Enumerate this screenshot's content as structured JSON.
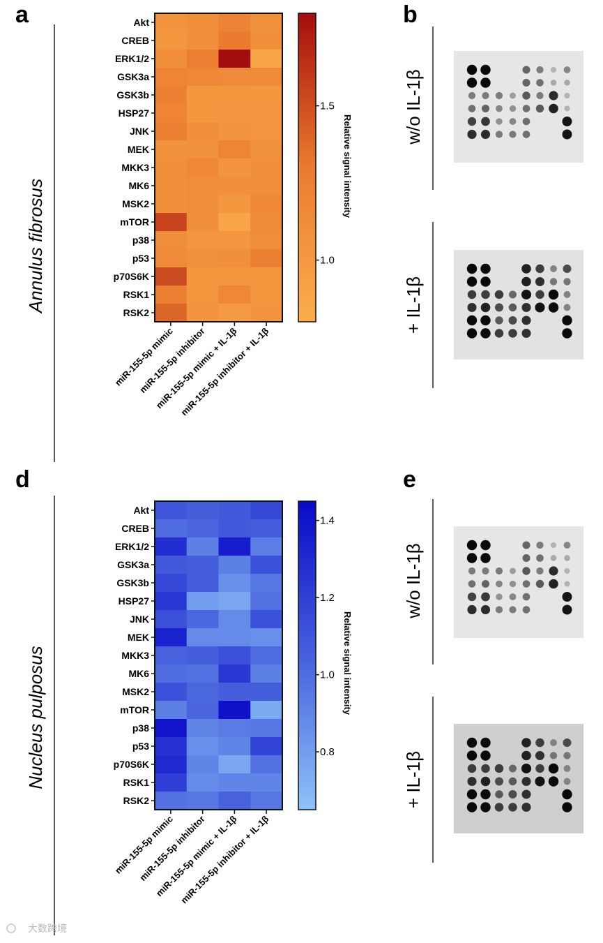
{
  "figure": {
    "panels": {
      "a": "a",
      "b": "b",
      "d": "d",
      "e": "e"
    },
    "watermark": "大数跨境"
  },
  "chart_data": [
    {
      "type": "heatmap",
      "panel": "a",
      "side_title": "Annulus fibrosus",
      "colorbar_title": "Relative signal intensity",
      "colormap": [
        "#fbae4d",
        "#ea7b2f",
        "#a40d0d"
      ],
      "vrange": [
        0.8,
        1.8
      ],
      "colorbar_ticks": [
        "1.0",
        "1.5"
      ],
      "colorbar_tick_values": [
        1.0,
        1.5
      ],
      "rows": [
        "Akt",
        "CREB",
        "ERK1/2",
        "GSK3a",
        "GSK3b",
        "HSP27",
        "JNK",
        "MEK",
        "MKK3",
        "MK6",
        "MSK2",
        "mTOR",
        "p38",
        "p53",
        "p70S6K",
        "RSK1",
        "RSK2"
      ],
      "columns": [
        "miR-155-5p mimic",
        "miR-155-5p inhibitor",
        "miR-155-5p mimic + IL-1β",
        "miR-155-5p inhibitor + IL-1β"
      ],
      "values": [
        [
          1.05,
          1.1,
          1.22,
          1.08
        ],
        [
          1.02,
          1.1,
          1.3,
          1.1
        ],
        [
          1.1,
          1.25,
          1.8,
          0.88
        ],
        [
          1.2,
          1.18,
          1.15,
          1.15
        ],
        [
          1.25,
          1.02,
          1.03,
          1.02
        ],
        [
          1.2,
          1.03,
          1.04,
          1.04
        ],
        [
          1.25,
          1.1,
          1.05,
          1.04
        ],
        [
          1.07,
          1.08,
          1.2,
          1.08
        ],
        [
          1.1,
          1.18,
          1.05,
          1.1
        ],
        [
          1.1,
          1.12,
          1.1,
          1.1
        ],
        [
          1.1,
          1.12,
          1.02,
          1.18
        ],
        [
          1.55,
          1.1,
          0.9,
          1.15
        ],
        [
          1.12,
          1.04,
          1.04,
          1.12
        ],
        [
          1.15,
          1.08,
          1.1,
          1.25
        ],
        [
          1.52,
          1.02,
          1.03,
          1.03
        ],
        [
          1.25,
          1.03,
          1.18,
          1.03
        ],
        [
          1.4,
          1.06,
          1.0,
          1.05
        ]
      ]
    },
    {
      "type": "heatmap",
      "panel": "d",
      "side_title": "Nucleus pulposus",
      "colorbar_title": "Relative signal intensity",
      "colormap": [
        "#8ec2f8",
        "#4660dc",
        "#0909c8"
      ],
      "vrange": [
        0.65,
        1.45
      ],
      "colorbar_ticks": [
        "0.8",
        "1.0",
        "1.2",
        "1.4"
      ],
      "colorbar_tick_values": [
        0.8,
        1.0,
        1.2,
        1.4
      ],
      "rows": [
        "Akt",
        "CREB",
        "ERK1/2",
        "GSK3a",
        "GSK3b",
        "HSP27",
        "JNK",
        "MEK",
        "MKK3",
        "MK6",
        "MSK2",
        "mTOR",
        "p38",
        "p53",
        "p70S6K",
        "RSK1",
        "RSK2"
      ],
      "columns": [
        "miR-155-5p mimic",
        "miR-155-5p inhibitor",
        "miR-155-5p mimic + IL-1β",
        "miR-155-5p inhibitor + IL-1β"
      ],
      "values": [
        [
          1.1,
          1.06,
          1.08,
          1.15
        ],
        [
          1.0,
          1.03,
          1.08,
          1.06
        ],
        [
          1.28,
          0.92,
          1.36,
          0.93
        ],
        [
          1.08,
          1.06,
          0.92,
          1.12
        ],
        [
          1.16,
          1.06,
          0.86,
          0.96
        ],
        [
          1.24,
          0.8,
          0.76,
          0.98
        ],
        [
          1.12,
          1.02,
          0.88,
          1.12
        ],
        [
          1.34,
          0.88,
          0.88,
          0.86
        ],
        [
          1.04,
          1.06,
          1.12,
          1.0
        ],
        [
          1.0,
          0.98,
          1.24,
          0.92
        ],
        [
          1.12,
          1.02,
          1.06,
          1.06
        ],
        [
          0.92,
          1.03,
          1.42,
          0.75
        ],
        [
          1.4,
          0.9,
          0.94,
          0.96
        ],
        [
          1.26,
          0.86,
          0.9,
          1.18
        ],
        [
          1.3,
          0.9,
          0.76,
          0.98
        ],
        [
          1.2,
          0.88,
          0.9,
          0.9
        ],
        [
          0.98,
          0.96,
          1.04,
          0.96
        ]
      ]
    }
  ],
  "blots": {
    "b": {
      "label_top": "w/o IL-1β",
      "label_bottom": "+ IL-1β"
    },
    "e": {
      "label_top": "w/o IL-1β",
      "label_bottom": "+ IL-1β"
    }
  }
}
